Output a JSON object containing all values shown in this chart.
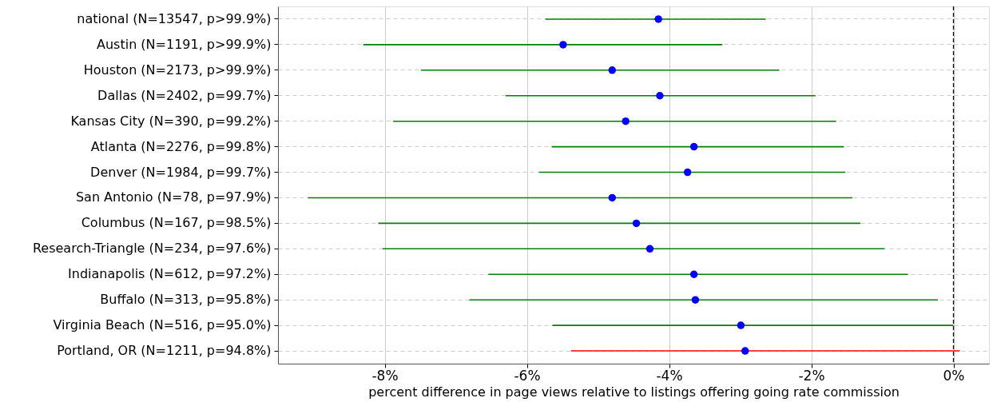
{
  "chart_data": {
    "type": "scatter",
    "orientation": "horizontal",
    "categories": [
      "national (N=13547, p>99.9%)",
      "Austin (N=1191, p>99.9%)",
      "Houston (N=2173, p>99.9%)",
      "Dallas (N=2402, p=99.7%)",
      "Kansas City (N=390, p=99.2%)",
      "Atlanta (N=2276, p=99.8%)",
      "Denver (N=1984, p=99.7%)",
      "San Antonio (N=78, p=97.9%)",
      "Columbus (N=167, p=98.5%)",
      "Research-Triangle (N=234, p=97.6%)",
      "Indianapolis (N=612, p=97.2%)",
      "Buffalo (N=313, p=95.8%)",
      "Virginia Beach (N=516, p=95.0%)",
      "Portland, OR (N=1211, p=94.8%)"
    ],
    "series": [
      {
        "type": "bar",
        "base": [
          -5.74,
          -8.3,
          -7.49,
          -6.3,
          -7.88,
          -5.65,
          -5.83,
          -9.08,
          -8.09,
          -8.03,
          -6.54,
          -6.81,
          -5.64,
          -5.38
        ],
        "values": [
          3.1,
          5.05,
          5.04,
          4.36,
          6.23,
          4.11,
          4.31,
          7.66,
          6.78,
          7.06,
          5.9,
          6.59,
          5.64,
          5.47
        ],
        "colors": [
          "#008000",
          "#008000",
          "#008000",
          "#008000",
          "#008000",
          "#008000",
          "#008000",
          "#008000",
          "#008000",
          "#008000",
          "#008000",
          "#008000",
          "#008000",
          "#ff0000"
        ]
      },
      {
        "color": "#0000ff",
        "marker": "circle",
        "values": [
          -4.15,
          -5.49,
          -4.8,
          -4.13,
          -4.61,
          -3.65,
          -3.74,
          -4.8,
          -4.46,
          -4.27,
          -3.65,
          -3.63,
          -2.99,
          -2.93
        ]
      }
    ],
    "xlim": [
      -9.5,
      0.5
    ],
    "xticks": [
      {
        "value": -8,
        "label": "-8%"
      },
      {
        "value": -6,
        "label": "-6%"
      },
      {
        "value": -4,
        "label": "-4%"
      },
      {
        "value": -2,
        "label": "-2%"
      },
      {
        "value": 0,
        "label": "0%"
      }
    ],
    "xlabel": "percent difference in page views relative to listings offering going rate commission",
    "grid": true,
    "ref_lines": [
      {
        "axis": "x",
        "value": 0,
        "color": "#000000",
        "line_style": "dashed"
      }
    ]
  }
}
